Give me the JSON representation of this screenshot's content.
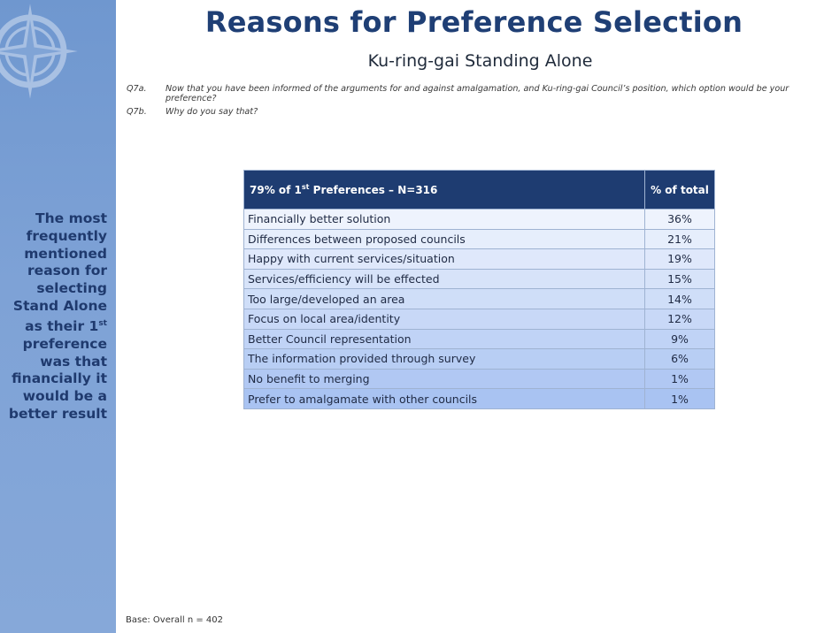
{
  "title": "Reasons for Preference Selection",
  "subtitle": "Ku-ring-gai Standing Alone",
  "questions": [
    {
      "code": "Q7a.",
      "text": "Now that you have been informed of the arguments for and against amalgamation, and Ku-ring-gai Council’s position, which option would be your preference?"
    },
    {
      "code": "Q7b.",
      "text": "Why do you say that?"
    }
  ],
  "sidebar": {
    "text_before": "The most\nfrequently\nmentioned\nreason for\nselecting\nStand Alone\nas their 1",
    "text_sup": "st",
    "text_after": "\npreference\nwas that\nfinancially it\nwould be a\nbetter result"
  },
  "table": {
    "header_left_before": "79% of 1",
    "header_left_sup": "st",
    "header_left_after": " Preferences – N=316",
    "header_right": "% of total",
    "rows": [
      {
        "reason": "Financially better solution",
        "pct": "36%"
      },
      {
        "reason": "Differences between proposed councils",
        "pct": "21%"
      },
      {
        "reason": "Happy with current services/situation",
        "pct": "19%"
      },
      {
        "reason": "Services/efficiency will be effected",
        "pct": "15%"
      },
      {
        "reason": "Too large/developed an area",
        "pct": "14%"
      },
      {
        "reason": "Focus on local area/identity",
        "pct": "12%"
      },
      {
        "reason": "Better Council representation",
        "pct": "9%"
      },
      {
        "reason": "The information provided through survey",
        "pct": "6%"
      },
      {
        "reason": "No benefit to merging",
        "pct": "1%"
      },
      {
        "reason": "Prefer to amalgamate with other councils",
        "pct": "1%"
      }
    ],
    "colors": {
      "header": "#1e3c71",
      "row_light": "#eef3fd",
      "row_dark": "#a9c3f2"
    }
  },
  "footer": "Base: Overall n = 402"
}
